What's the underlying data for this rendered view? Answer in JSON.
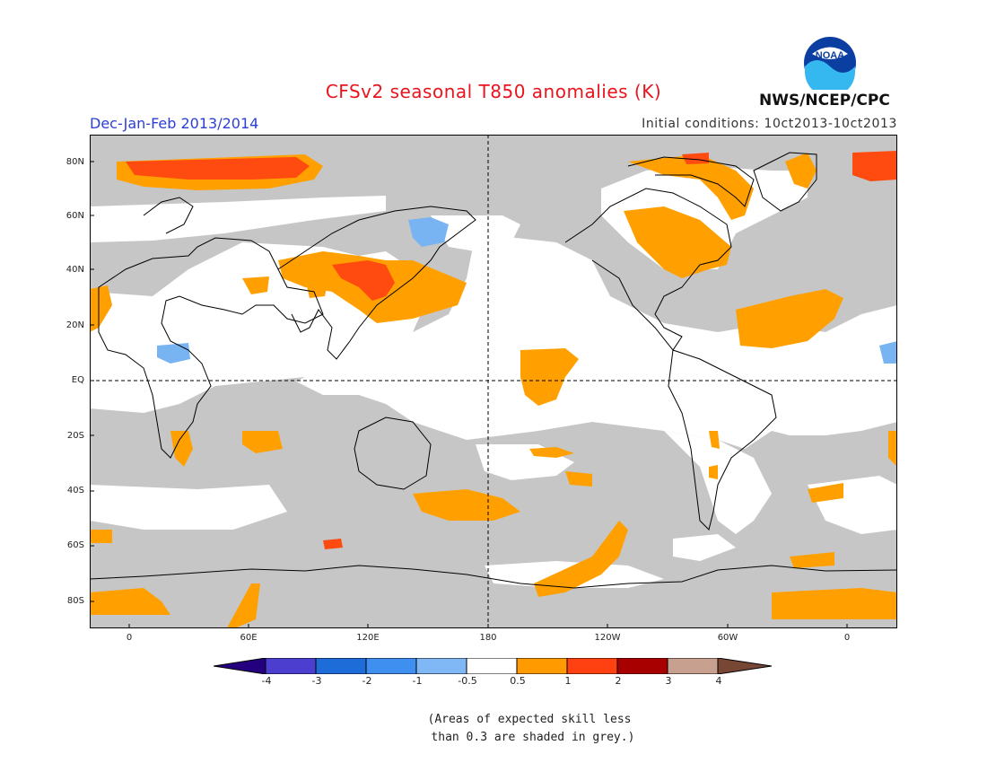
{
  "header": {
    "title": "CFSv2 seasonal T850 anomalies (K)",
    "season": "Dec-Jan-Feb 2013/2014",
    "initial_conditions": "Initial conditions: 10ct2013-10ct2013",
    "agency": "NWS/NCEP/CPC",
    "logo_text": "NOAA"
  },
  "axes": {
    "lat_labels": [
      "80N",
      "60N",
      "40N",
      "20N",
      "EQ",
      "20S",
      "40S",
      "60S",
      "80S"
    ],
    "lon_labels": [
      "0",
      "60E",
      "120E",
      "180",
      "120W",
      "60W",
      "0"
    ]
  },
  "legend": {
    "unit": "K",
    "labels": [
      "-4",
      "-3",
      "-2",
      "-1",
      "-0.5",
      "0.5",
      "1",
      "2",
      "3",
      "4"
    ],
    "colors": [
      "#24007e",
      "#4c3fd0",
      "#1e6cd8",
      "#3e8ff0",
      "#7fb8f4",
      "#ffffff",
      "#ff9a00",
      "#ff4010",
      "#a80000",
      "#c8a090",
      "#784634"
    ]
  },
  "note": "(Areas of expected skill less\n than 0.3 are shaded in grey.)",
  "map_colors": {
    "grey": "#c6c6c6",
    "orange": "#ffa000",
    "red_orange": "#ff4a10",
    "light_blue": "#78b4f2",
    "coast": "#000000"
  }
}
